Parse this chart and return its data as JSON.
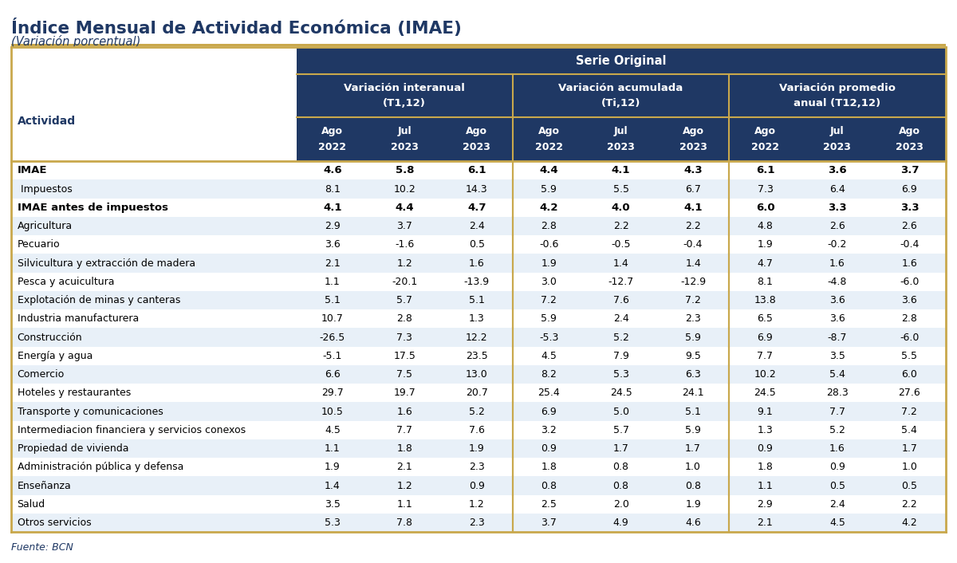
{
  "title": "Índice Mensual de Actividad Económica (IMAE)",
  "subtitle": "(Variación porcentual)",
  "source": "Fuente: BCN",
  "header_group": "Serie Original",
  "col_groups": [
    {
      "label": "Variación interanual\n(T1,12)",
      "cols": [
        "Ago\n2022",
        "Jul\n2023",
        "Ago\n2023"
      ]
    },
    {
      "label": "Variación acumulada\n(Ti,12)",
      "cols": [
        "Ago\n2022",
        "Jul\n2023",
        "Ago\n2023"
      ]
    },
    {
      "label": "Variación promedio\nanual (T12,12)",
      "cols": [
        "Ago\n2022",
        "Jul\n2023",
        "Ago\n2023"
      ]
    }
  ],
  "first_col_label": "Actividad",
  "rows": [
    {
      "label": "IMAE",
      "bold": true,
      "values": [
        "4.6",
        "5.8",
        "6.1",
        "4.4",
        "4.1",
        "4.3",
        "6.1",
        "3.6",
        "3.7"
      ]
    },
    {
      "label": " Impuestos",
      "bold": false,
      "values": [
        "8.1",
        "10.2",
        "14.3",
        "5.9",
        "5.5",
        "6.7",
        "7.3",
        "6.4",
        "6.9"
      ]
    },
    {
      "label": "IMAE antes de impuestos",
      "bold": true,
      "values": [
        "4.1",
        "4.4",
        "4.7",
        "4.2",
        "4.0",
        "4.1",
        "6.0",
        "3.3",
        "3.3"
      ]
    },
    {
      "label": "Agricultura",
      "bold": false,
      "values": [
        "2.9",
        "3.7",
        "2.4",
        "2.8",
        "2.2",
        "2.2",
        "4.8",
        "2.6",
        "2.6"
      ]
    },
    {
      "label": "Pecuario",
      "bold": false,
      "values": [
        "3.6",
        "-1.6",
        "0.5",
        "-0.6",
        "-0.5",
        "-0.4",
        "1.9",
        "-0.2",
        "-0.4"
      ]
    },
    {
      "label": "Silvicultura y extracción de madera",
      "bold": false,
      "values": [
        "2.1",
        "1.2",
        "1.6",
        "1.9",
        "1.4",
        "1.4",
        "4.7",
        "1.6",
        "1.6"
      ]
    },
    {
      "label": "Pesca y acuicultura",
      "bold": false,
      "values": [
        "1.1",
        "-20.1",
        "-13.9",
        "3.0",
        "-12.7",
        "-12.9",
        "8.1",
        "-4.8",
        "-6.0"
      ]
    },
    {
      "label": "Explotación de minas y canteras",
      "bold": false,
      "values": [
        "5.1",
        "5.7",
        "5.1",
        "7.2",
        "7.6",
        "7.2",
        "13.8",
        "3.6",
        "3.6"
      ]
    },
    {
      "label": "Industria manufacturera",
      "bold": false,
      "values": [
        "10.7",
        "2.8",
        "1.3",
        "5.9",
        "2.4",
        "2.3",
        "6.5",
        "3.6",
        "2.8"
      ]
    },
    {
      "label": "Construcción",
      "bold": false,
      "values": [
        "-26.5",
        "7.3",
        "12.2",
        "-5.3",
        "5.2",
        "5.9",
        "6.9",
        "-8.7",
        "-6.0"
      ]
    },
    {
      "label": "Energía y agua",
      "bold": false,
      "values": [
        "-5.1",
        "17.5",
        "23.5",
        "4.5",
        "7.9",
        "9.5",
        "7.7",
        "3.5",
        "5.5"
      ]
    },
    {
      "label": "Comercio",
      "bold": false,
      "values": [
        "6.6",
        "7.5",
        "13.0",
        "8.2",
        "5.3",
        "6.3",
        "10.2",
        "5.4",
        "6.0"
      ]
    },
    {
      "label": "Hoteles y restaurantes",
      "bold": false,
      "values": [
        "29.7",
        "19.7",
        "20.7",
        "25.4",
        "24.5",
        "24.1",
        "24.5",
        "28.3",
        "27.6"
      ]
    },
    {
      "label": "Transporte y comunicaciones",
      "bold": false,
      "values": [
        "10.5",
        "1.6",
        "5.2",
        "6.9",
        "5.0",
        "5.1",
        "9.1",
        "7.7",
        "7.2"
      ]
    },
    {
      "label": "Intermediacion financiera y servicios conexos",
      "bold": false,
      "values": [
        "4.5",
        "7.7",
        "7.6",
        "3.2",
        "5.7",
        "5.9",
        "1.3",
        "5.2",
        "5.4"
      ]
    },
    {
      "label": "Propiedad de vivienda",
      "bold": false,
      "values": [
        "1.1",
        "1.8",
        "1.9",
        "0.9",
        "1.7",
        "1.7",
        "0.9",
        "1.6",
        "1.7"
      ]
    },
    {
      "label": "Administración pública y defensa",
      "bold": false,
      "values": [
        "1.9",
        "2.1",
        "2.3",
        "1.8",
        "0.8",
        "1.0",
        "1.8",
        "0.9",
        "1.0"
      ]
    },
    {
      "label": "Enseñanza",
      "bold": false,
      "values": [
        "1.4",
        "1.2",
        "0.9",
        "0.8",
        "0.8",
        "0.8",
        "1.1",
        "0.5",
        "0.5"
      ]
    },
    {
      "label": "Salud",
      "bold": false,
      "values": [
        "3.5",
        "1.1",
        "1.2",
        "2.5",
        "2.0",
        "1.9",
        "2.9",
        "2.4",
        "2.2"
      ]
    },
    {
      "label": "Otros servicios",
      "bold": false,
      "values": [
        "5.3",
        "7.8",
        "2.3",
        "3.7",
        "4.9",
        "4.6",
        "2.1",
        "4.5",
        "4.2"
      ]
    }
  ],
  "title_color": "#1F3864",
  "subtitle_color": "#1F3864",
  "header_bg_color": "#1F3864",
  "border_color": "#C9A84C",
  "source_color": "#1F3864",
  "alt_row_color": "#E8F0F8",
  "normal_row_color": "#FFFFFF"
}
